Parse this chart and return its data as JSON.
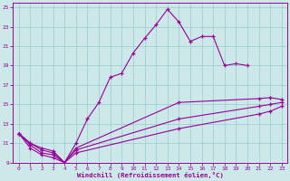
{
  "xlabel": "Windchill (Refroidissement éolien,°C)",
  "bg_color": "#cce8e8",
  "grid_color": "#99cccc",
  "line_color": "#990099",
  "xlim": [
    -0.5,
    23.5
  ],
  "ylim": [
    9,
    25.5
  ],
  "xticks": [
    0,
    1,
    2,
    3,
    4,
    5,
    6,
    7,
    8,
    9,
    10,
    11,
    12,
    13,
    14,
    15,
    16,
    17,
    18,
    19,
    20,
    21,
    22,
    23
  ],
  "yticks": [
    9,
    11,
    13,
    15,
    17,
    19,
    21,
    23,
    25
  ],
  "line1_x": [
    0,
    1,
    2,
    3,
    4,
    5,
    6,
    7,
    8,
    9,
    10,
    11,
    12,
    13,
    14,
    15,
    16,
    17,
    18,
    19,
    20
  ],
  "line1_y": [
    12.0,
    11.0,
    10.5,
    10.2,
    9.0,
    11.0,
    13.5,
    15.2,
    17.8,
    18.2,
    20.3,
    21.8,
    23.2,
    24.8,
    23.5,
    21.5,
    22.0,
    22.0,
    19.0,
    19.2,
    19.0
  ],
  "line2_x": [
    0,
    1,
    2,
    3,
    4,
    5,
    14,
    21,
    22,
    23
  ],
  "line2_y": [
    12.0,
    11.0,
    10.3,
    10.0,
    9.0,
    10.5,
    15.2,
    15.6,
    15.7,
    15.5
  ],
  "line3_x": [
    0,
    1,
    2,
    3,
    4,
    5,
    14,
    21,
    22,
    23
  ],
  "line3_y": [
    12.0,
    10.8,
    10.0,
    9.8,
    9.0,
    10.3,
    13.5,
    14.8,
    15.0,
    15.2
  ],
  "line4_x": [
    0,
    1,
    2,
    3,
    4,
    5,
    14,
    21,
    22,
    23
  ],
  "line4_y": [
    12.0,
    10.5,
    9.8,
    9.5,
    9.0,
    10.0,
    12.5,
    14.0,
    14.3,
    14.8
  ]
}
